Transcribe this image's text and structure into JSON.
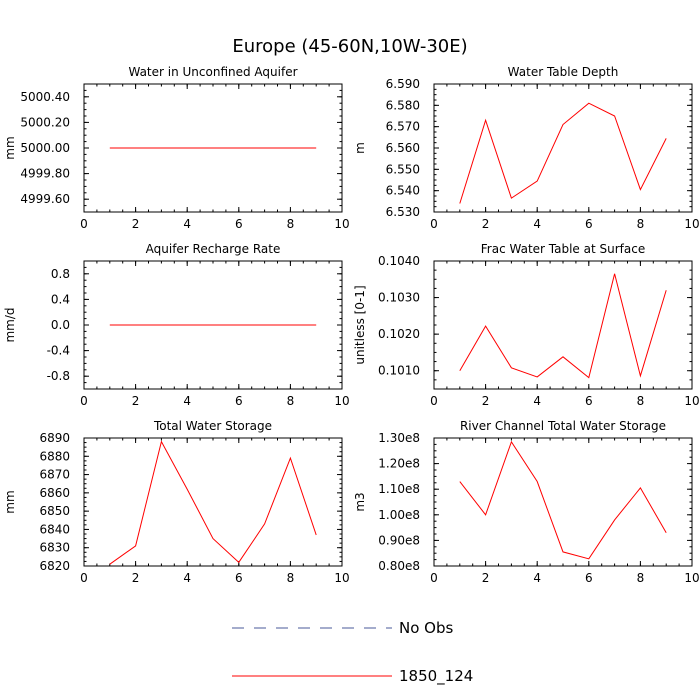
{
  "title": "Europe (45-60N,10W-30E)",
  "colors": {
    "model": "#ff0000",
    "obs": "#4a5a9a",
    "axis": "#000000"
  },
  "legend": [
    {
      "label": "No Obs",
      "style": "dashed",
      "color": "#4a5a9a"
    },
    {
      "label": "1850_124",
      "style": "solid",
      "color": "#ff0000"
    }
  ],
  "chart_data": [
    {
      "type": "line",
      "title": "Water in Unconfined Aquifer",
      "ylabel": "mm",
      "xlim": [
        0,
        10
      ],
      "ylim": [
        4999.5,
        5000.5
      ],
      "xticks": [
        0,
        2,
        4,
        6,
        8,
        10
      ],
      "yticks": [
        4999.6,
        4999.8,
        5000.0,
        5000.2,
        5000.4
      ],
      "ytick_labels": [
        "4999.60",
        "4999.80",
        "5000.00",
        "5000.20",
        "5000.40"
      ],
      "series": [
        {
          "name": "1850_124",
          "x": [
            1,
            2,
            3,
            4,
            5,
            6,
            7,
            8,
            9
          ],
          "y": [
            5000,
            5000,
            5000,
            5000,
            5000,
            5000,
            5000,
            5000,
            5000
          ]
        }
      ]
    },
    {
      "type": "line",
      "title": "Water Table Depth",
      "ylabel": "m",
      "xlim": [
        0,
        10
      ],
      "ylim": [
        6.53,
        6.59
      ],
      "xticks": [
        0,
        2,
        4,
        6,
        8,
        10
      ],
      "yticks": [
        6.53,
        6.54,
        6.55,
        6.56,
        6.57,
        6.58,
        6.59
      ],
      "ytick_labels": [
        "6.530",
        "6.540",
        "6.550",
        "6.560",
        "6.570",
        "6.580",
        "6.590"
      ],
      "series": [
        {
          "name": "1850_124",
          "x": [
            1,
            2,
            3,
            4,
            5,
            6,
            7,
            8,
            9
          ],
          "y": [
            6.534,
            6.573,
            6.5365,
            6.5445,
            6.571,
            6.581,
            6.575,
            6.5405,
            6.5645
          ]
        }
      ]
    },
    {
      "type": "line",
      "title": "Aquifer Recharge Rate",
      "ylabel": "mm/d",
      "xlim": [
        0,
        10
      ],
      "ylim": [
        -1,
        1
      ],
      "xticks": [
        0,
        2,
        4,
        6,
        8,
        10
      ],
      "yticks": [
        -0.8,
        -0.4,
        0.0,
        0.4,
        0.8
      ],
      "ytick_labels": [
        "-0.8",
        "-0.4",
        "0.0",
        "0.4",
        "0.8"
      ],
      "series": [
        {
          "name": "1850_124",
          "x": [
            1,
            2,
            3,
            4,
            5,
            6,
            7,
            8,
            9
          ],
          "y": [
            0,
            0,
            0,
            0,
            0,
            0,
            0,
            0,
            0
          ]
        }
      ]
    },
    {
      "type": "line",
      "title": "Frac Water Table at Surface",
      "ylabel": "unitless [0-1]",
      "xlim": [
        0,
        10
      ],
      "ylim": [
        0.1005,
        0.104
      ],
      "xticks": [
        0,
        2,
        4,
        6,
        8,
        10
      ],
      "yticks": [
        0.101,
        0.102,
        0.103,
        0.104
      ],
      "ytick_labels": [
        "0.1010",
        "0.1020",
        "0.1030",
        "0.1040"
      ],
      "series": [
        {
          "name": "1850_124",
          "x": [
            1,
            2,
            3,
            4,
            5,
            6,
            7,
            8,
            9
          ],
          "y": [
            0.101,
            0.10222,
            0.10108,
            0.10083,
            0.10138,
            0.10081,
            0.10365,
            0.10086,
            0.1032
          ]
        }
      ]
    },
    {
      "type": "line",
      "title": "Total Water Storage",
      "ylabel": "mm",
      "xlim": [
        0,
        10
      ],
      "ylim": [
        6820,
        6890
      ],
      "xticks": [
        0,
        2,
        4,
        6,
        8,
        10
      ],
      "yticks": [
        6820,
        6830,
        6840,
        6850,
        6860,
        6870,
        6880,
        6890
      ],
      "ytick_labels": [
        "6820",
        "6830",
        "6840",
        "6850",
        "6860",
        "6870",
        "6880",
        "6890"
      ],
      "series": [
        {
          "name": "1850_124",
          "x": [
            1,
            2,
            3,
            4,
            5,
            6,
            7,
            8,
            9
          ],
          "y": [
            6821,
            6831,
            6888,
            6862,
            6835,
            6822,
            6843,
            6879,
            6837
          ]
        }
      ]
    },
    {
      "type": "line",
      "title": "River Channel Total Water Storage",
      "ylabel": "m3",
      "xlim": [
        0,
        10
      ],
      "ylim": [
        80000000,
        130000000
      ],
      "xticks": [
        0,
        2,
        4,
        6,
        8,
        10
      ],
      "yticks": [
        80000000,
        90000000,
        100000000,
        110000000,
        120000000,
        130000000
      ],
      "ytick_labels": [
        "0.80e8",
        "0.90e8",
        "1.00e8",
        "1.10e8",
        "1.20e8",
        "1.30e8"
      ],
      "series": [
        {
          "name": "1850_124",
          "x": [
            1,
            2,
            3,
            4,
            5,
            6,
            7,
            8,
            9
          ],
          "y": [
            113000000,
            100000000,
            128500000,
            113000000,
            85500000,
            82800000,
            98000000,
            110500000,
            93000000
          ]
        }
      ]
    }
  ]
}
